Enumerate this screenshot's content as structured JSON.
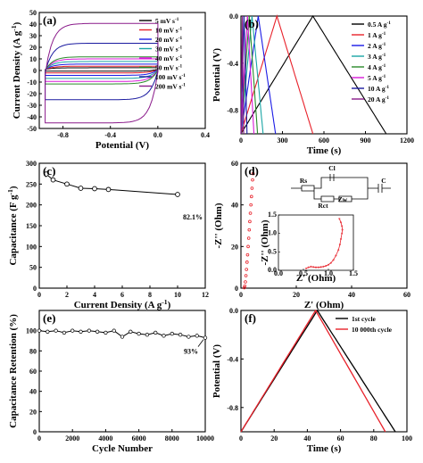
{
  "chart_data": [
    {
      "panel": "(a)",
      "type": "line",
      "xlabel": "Potential (V)",
      "ylabel": "Current Density (A g-1)",
      "xlim": [
        -1.0,
        0.4
      ],
      "ylim": [
        -50,
        50
      ],
      "xticks": [
        -0.8,
        -0.4,
        0.0,
        0.4
      ],
      "yticks": [
        -50,
        -40,
        -30,
        -20,
        -10,
        0,
        10,
        20,
        30,
        40,
        50
      ],
      "legend_position": "top-right",
      "series": [
        {
          "name": "5 mV s-1",
          "color": "#000000",
          "halfwidth": 1.5
        },
        {
          "name": "10 mV s-1",
          "color": "#e8212a",
          "halfwidth": 3
        },
        {
          "name": "20 mV s-1",
          "color": "#1a1ae6",
          "halfwidth": 5
        },
        {
          "name": "30 mV s-1",
          "color": "#1aa5a5",
          "halfwidth": 7.5
        },
        {
          "name": "40 mV s-1",
          "color": "#d81ad8",
          "halfwidth": 10
        },
        {
          "name": "50 mV s-1",
          "color": "#2a8a2a",
          "halfwidth": 12
        },
        {
          "name": "100 mV s-1",
          "color": "#1a1aa0",
          "halfwidth": 25
        },
        {
          "name": "200 mV s-1",
          "color": "#8a1a8a",
          "halfwidth": 44
        }
      ],
      "x_range": [
        -0.95,
        0.0
      ]
    },
    {
      "panel": "(b)",
      "type": "line",
      "xlabel": "Time (s)",
      "ylabel": "Potential (V)",
      "xlim": [
        0,
        1200
      ],
      "ylim": [
        -1.0,
        0.0
      ],
      "xticks": [
        0,
        300,
        600,
        900,
        1200
      ],
      "yticks": [
        -0.8,
        -0.4,
        0.0
      ],
      "legend_position": "top-right",
      "series": [
        {
          "name": "0.5 A g-1",
          "color": "#000000",
          "t_peak": 520,
          "t_end": 1050
        },
        {
          "name": "1 A g-1",
          "color": "#e8212a",
          "t_peak": 260,
          "t_end": 520
        },
        {
          "name": "2 A g-1",
          "color": "#1a1ae6",
          "t_peak": 125,
          "t_end": 250
        },
        {
          "name": "3 A g-1",
          "color": "#1aa5a5",
          "t_peak": 80,
          "t_end": 160
        },
        {
          "name": "4 A g-1",
          "color": "#2a8a2a",
          "t_peak": 60,
          "t_end": 120
        },
        {
          "name": "5 A g-1",
          "color": "#d81ad8",
          "t_peak": 47,
          "t_end": 94
        },
        {
          "name": "10 A g-1",
          "color": "#1a1aa0",
          "t_peak": 22,
          "t_end": 44
        },
        {
          "name": "20 A g-1",
          "color": "#8a1a8a",
          "t_peak": 10,
          "t_end": 20
        }
      ]
    },
    {
      "panel": "(c)",
      "type": "line",
      "xlabel": "Current Density (A g-1)",
      "ylabel": "Capacitance (F g-1)",
      "xlim": [
        0,
        12
      ],
      "ylim": [
        0,
        300
      ],
      "xticks": [
        0,
        2,
        4,
        6,
        8,
        10,
        12
      ],
      "yticks": [
        0,
        50,
        100,
        150,
        200,
        250,
        300
      ],
      "x": [
        0.5,
        1,
        2,
        3,
        4,
        5,
        10
      ],
      "y": [
        274,
        260,
        250,
        240,
        239,
        237,
        225
      ],
      "annotation": "82.1%"
    },
    {
      "panel": "(d)",
      "type": "scatter",
      "xlabel": "Z' (Ohm)",
      "ylabel": "-Z'' (Ohm)",
      "xlim": [
        0,
        60
      ],
      "ylim": [
        0,
        60
      ],
      "xticks": [
        0,
        20,
        40,
        60
      ],
      "yticks": [
        0,
        20,
        40,
        60
      ],
      "x": [
        1.2,
        1.4,
        1.6,
        1.8,
        2.0,
        2.2,
        2.4,
        2.6,
        2.8,
        3.0,
        3.2,
        3.4,
        3.6,
        3.8,
        4.0,
        4.2,
        4.4
      ],
      "y": [
        0.2,
        1.0,
        3.0,
        6.0,
        9.0,
        12.5,
        16.0,
        20.0,
        24.0,
        28.0,
        32.0,
        36.0,
        40.0,
        44.0,
        48.0,
        52.0,
        55.0
      ],
      "circuit_labels": [
        "Rs",
        "Cl",
        "Rct",
        "Zw",
        "C"
      ],
      "inset": {
        "xlabel": "Z' (Ohm)",
        "ylabel": "-Z'' (Ohm)",
        "xlim": [
          0.0,
          1.5
        ],
        "ylim": [
          0.0,
          1.5
        ],
        "xticks": [
          "0.0",
          "0.5",
          "1.0",
          "1.5"
        ],
        "yticks": [
          "0.0",
          "0.5",
          "1.0",
          "1.5"
        ],
        "x": [
          0.55,
          0.6,
          0.65,
          0.7,
          0.75,
          0.8,
          0.85,
          0.9,
          0.95,
          1.0,
          1.05,
          1.1,
          1.15,
          1.2,
          1.23,
          1.25,
          1.27,
          1.28,
          1.27,
          1.25,
          1.22
        ],
        "y": [
          0.05,
          0.08,
          0.1,
          0.09,
          0.08,
          0.08,
          0.09,
          0.1,
          0.12,
          0.15,
          0.2,
          0.28,
          0.4,
          0.55,
          0.7,
          0.85,
          1.0,
          1.1,
          1.2,
          1.3,
          1.4
        ]
      }
    },
    {
      "panel": "(e)",
      "type": "line",
      "xlabel": "Cycle Number",
      "ylabel": "Capacitance Retention (%)",
      "xlim": [
        0,
        10000
      ],
      "ylim": [
        0,
        120
      ],
      "xticks": [
        0,
        2000,
        4000,
        6000,
        8000,
        10000
      ],
      "yticks": [
        0,
        20,
        40,
        60,
        80,
        100
      ],
      "x": [
        0,
        500,
        1000,
        1500,
        2000,
        2500,
        3000,
        3500,
        4000,
        4500,
        5000,
        5500,
        6000,
        6500,
        7000,
        7500,
        8000,
        8500,
        9000,
        9500,
        10000
      ],
      "y": [
        100,
        99,
        100,
        98,
        100,
        99,
        100,
        99,
        98,
        100,
        94,
        99,
        97,
        96,
        98,
        95,
        97,
        96,
        94,
        95,
        93
      ],
      "annotation": "93%"
    },
    {
      "panel": "(f)",
      "type": "line",
      "xlabel": "Time (s)",
      "ylabel": "Potential (V)",
      "xlim": [
        0,
        100
      ],
      "ylim": [
        -1.0,
        0.0
      ],
      "xticks": [
        0,
        20,
        40,
        60,
        80,
        100
      ],
      "yticks": [
        -0.8,
        -0.4,
        0.0
      ],
      "legend_position": "top-right",
      "series": [
        {
          "name": "1st cycle",
          "color": "#000000",
          "t_peak": 46,
          "t_end": 93
        },
        {
          "name": "10 000th cycle",
          "color": "#e8212a",
          "t_peak": 45,
          "t_end": 87
        }
      ]
    }
  ]
}
